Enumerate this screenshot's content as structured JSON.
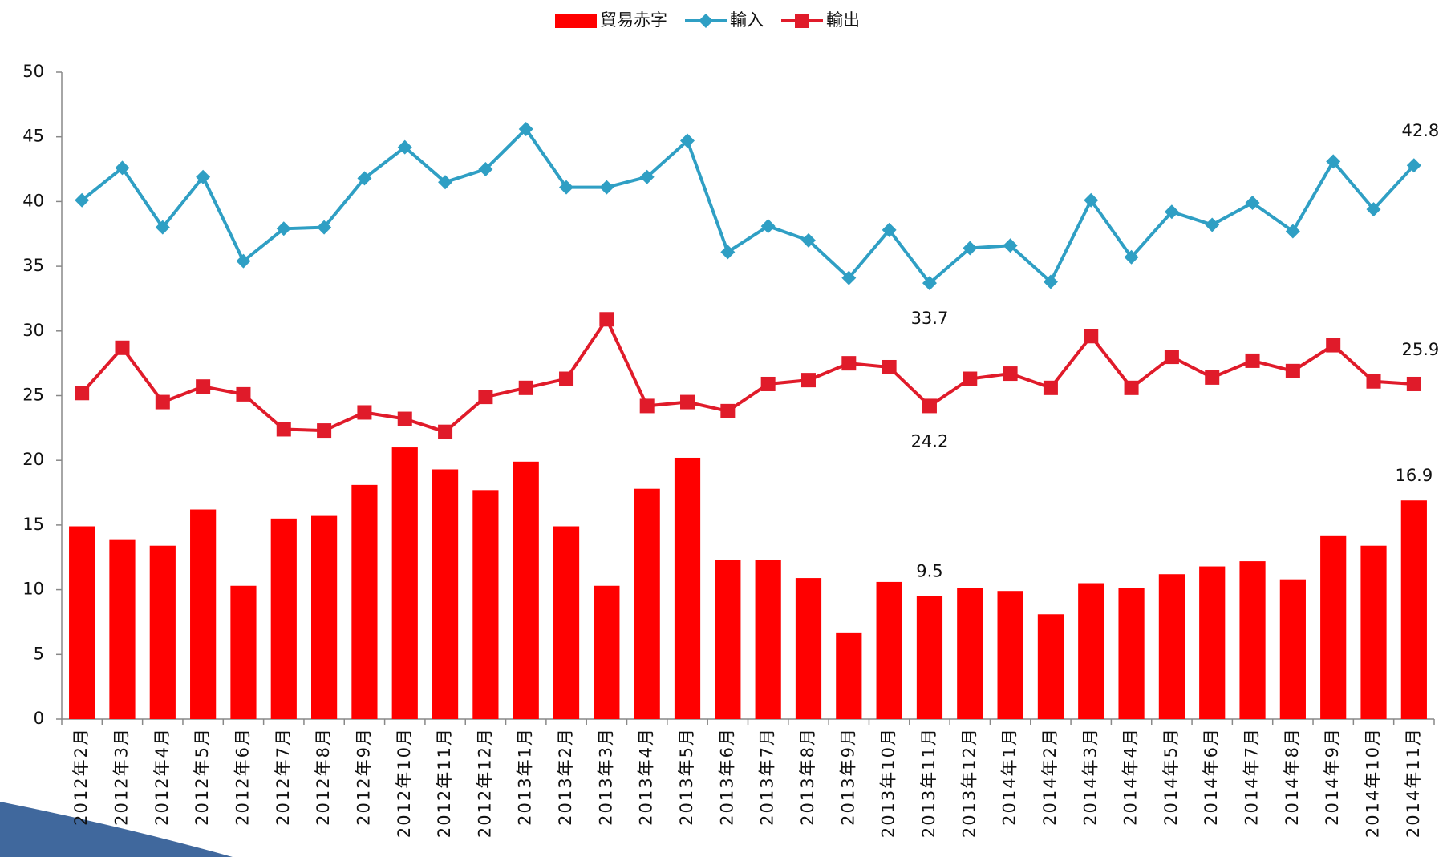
{
  "chart_data": {
    "type": "combo",
    "categories": [
      "2012年2月",
      "2012年3月",
      "2012年4月",
      "2012年5月",
      "2012年6月",
      "2012年7月",
      "2012年8月",
      "2012年9月",
      "2012年10月",
      "2012年11月",
      "2012年12月",
      "2013年1月",
      "2013年2月",
      "2013年3月",
      "2013年4月",
      "2013年5月",
      "2013年6月",
      "2013年7月",
      "2013年8月",
      "2013年9月",
      "2013年10月",
      "2013年11月",
      "2013年12月",
      "2014年1月",
      "2014年2月",
      "2014年3月",
      "2014年4月",
      "2014年5月",
      "2014年6月",
      "2014年7月",
      "2014年8月",
      "2014年9月",
      "2014年10月",
      "2014年11月"
    ],
    "series": [
      {
        "name": "貿易赤字",
        "type": "bar",
        "color": "#ff0000",
        "labels_at": [
          21,
          33
        ],
        "values": [
          14.9,
          13.9,
          13.4,
          16.2,
          10.3,
          15.5,
          15.7,
          18.1,
          21.0,
          19.3,
          17.7,
          19.9,
          14.9,
          10.3,
          17.8,
          20.2,
          12.3,
          12.3,
          10.9,
          6.7,
          10.6,
          9.5,
          10.1,
          9.9,
          8.1,
          10.5,
          10.1,
          11.2,
          11.8,
          12.2,
          10.8,
          14.2,
          13.4,
          16.9
        ]
      },
      {
        "name": "輸入",
        "type": "line",
        "marker": "diamond",
        "color": "#2f9fc4",
        "labels_at": [
          21,
          33
        ],
        "values": [
          40.1,
          42.6,
          38.0,
          41.9,
          35.4,
          37.9,
          38.0,
          41.8,
          44.2,
          41.5,
          42.5,
          45.6,
          41.1,
          41.1,
          41.9,
          44.7,
          36.1,
          38.1,
          37.0,
          34.1,
          37.8,
          33.7,
          36.4,
          36.6,
          33.8,
          40.1,
          35.7,
          39.2,
          38.2,
          39.9,
          37.7,
          43.1,
          39.4,
          42.8
        ]
      },
      {
        "name": "輸出",
        "type": "line",
        "marker": "square",
        "color": "#e01b2a",
        "labels_at": [
          21,
          33
        ],
        "values": [
          25.2,
          28.7,
          24.5,
          25.7,
          25.1,
          22.4,
          22.3,
          23.7,
          23.2,
          22.2,
          24.9,
          25.6,
          26.3,
          30.9,
          24.2,
          24.5,
          23.8,
          25.9,
          26.2,
          27.5,
          27.2,
          24.2,
          26.3,
          26.7,
          25.6,
          29.6,
          25.6,
          28.0,
          26.4,
          27.7,
          26.9,
          28.9,
          26.1,
          25.9
        ]
      }
    ],
    "ylim": [
      0,
      50
    ],
    "yticks": [
      0,
      5,
      10,
      15,
      20,
      25,
      30,
      35,
      40,
      45,
      50
    ],
    "legend": "top"
  }
}
